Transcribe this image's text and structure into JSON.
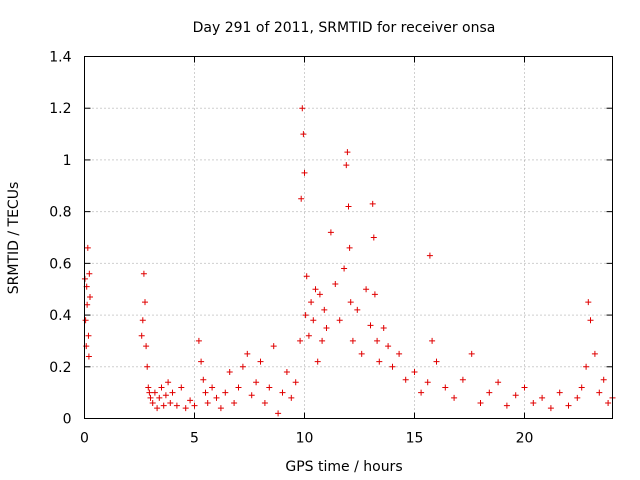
{
  "chart_data": {
    "type": "scatter",
    "title": "Day 291 of 2011, SRMTID for receiver onsa",
    "xlabel": "GPS time / hours",
    "ylabel": "SRMTID / TECUs",
    "xlim": [
      0,
      24
    ],
    "ylim": [
      0,
      1.4
    ],
    "xticks": [
      0,
      5,
      10,
      15,
      20
    ],
    "xtick_labels": [
      "0",
      "5",
      "10",
      "15",
      "20"
    ],
    "yticks": [
      0,
      0.2,
      0.4,
      0.6,
      0.8,
      1.0,
      1.2,
      1.4
    ],
    "ytick_labels": [
      "0",
      "0.2",
      "0.4",
      "0.6",
      "0.8",
      "1",
      "1.2",
      "1.4"
    ],
    "grid": true,
    "marker": "+",
    "color": "#e00000",
    "series": [
      {
        "name": "SRMTID",
        "x": [
          0.02,
          0.05,
          0.08,
          0.1,
          0.12,
          0.15,
          0.18,
          0.2,
          0.22,
          0.25,
          2.6,
          2.65,
          2.7,
          2.75,
          2.8,
          2.85,
          2.9,
          2.95,
          3.0,
          3.1,
          3.2,
          3.3,
          3.4,
          3.5,
          3.6,
          3.7,
          3.8,
          3.9,
          4.0,
          4.2,
          4.4,
          4.6,
          4.8,
          5.0,
          5.2,
          5.3,
          5.4,
          5.5,
          5.6,
          5.8,
          6.0,
          6.2,
          6.4,
          6.6,
          6.8,
          7.0,
          7.2,
          7.4,
          7.6,
          7.8,
          8.0,
          8.2,
          8.4,
          8.6,
          8.8,
          9.0,
          9.2,
          9.4,
          9.6,
          9.8,
          9.85,
          9.9,
          9.95,
          10.0,
          10.05,
          10.1,
          10.2,
          10.3,
          10.4,
          10.5,
          10.6,
          10.7,
          10.8,
          10.9,
          11.0,
          11.2,
          11.4,
          11.6,
          11.8,
          11.9,
          11.95,
          12.0,
          12.05,
          12.1,
          12.2,
          12.4,
          12.6,
          12.8,
          13.0,
          13.1,
          13.15,
          13.2,
          13.3,
          13.4,
          13.6,
          13.8,
          14.0,
          14.3,
          14.6,
          15.0,
          15.3,
          15.6,
          15.7,
          15.8,
          16.0,
          16.4,
          16.8,
          17.2,
          17.6,
          18.0,
          18.4,
          18.8,
          19.2,
          19.6,
          20.0,
          20.4,
          20.8,
          21.2,
          21.6,
          22.0,
          22.4,
          22.6,
          22.8,
          22.9,
          23.0,
          23.2,
          23.4,
          23.6,
          23.8,
          24.0
        ],
        "y": [
          0.54,
          0.38,
          0.28,
          0.51,
          0.44,
          0.66,
          0.32,
          0.24,
          0.56,
          0.47,
          0.32,
          0.38,
          0.56,
          0.45,
          0.28,
          0.2,
          0.12,
          0.1,
          0.08,
          0.06,
          0.1,
          0.04,
          0.08,
          0.12,
          0.05,
          0.09,
          0.14,
          0.06,
          0.1,
          0.05,
          0.12,
          0.04,
          0.07,
          0.05,
          0.3,
          0.22,
          0.15,
          0.1,
          0.06,
          0.12,
          0.08,
          0.04,
          0.1,
          0.18,
          0.06,
          0.12,
          0.2,
          0.25,
          0.09,
          0.14,
          0.22,
          0.06,
          0.12,
          0.28,
          0.02,
          0.1,
          0.18,
          0.08,
          0.14,
          0.3,
          0.85,
          1.2,
          1.1,
          0.95,
          0.4,
          0.55,
          0.32,
          0.45,
          0.38,
          0.5,
          0.22,
          0.48,
          0.3,
          0.42,
          0.35,
          0.72,
          0.52,
          0.38,
          0.58,
          0.98,
          1.03,
          0.82,
          0.66,
          0.45,
          0.3,
          0.42,
          0.25,
          0.5,
          0.36,
          0.83,
          0.7,
          0.48,
          0.3,
          0.22,
          0.35,
          0.28,
          0.2,
          0.25,
          0.15,
          0.18,
          0.1,
          0.14,
          0.63,
          0.3,
          0.22,
          0.12,
          0.08,
          0.15,
          0.25,
          0.06,
          0.1,
          0.14,
          0.05,
          0.09,
          0.12,
          0.06,
          0.08,
          0.04,
          0.1,
          0.05,
          0.08,
          0.12,
          0.2,
          0.45,
          0.38,
          0.25,
          0.1,
          0.15,
          0.06,
          0.08
        ]
      }
    ]
  }
}
